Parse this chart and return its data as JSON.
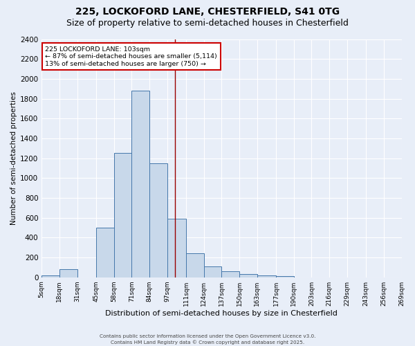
{
  "title_line1": "225, LOCKOFORD LANE, CHESTERFIELD, S41 0TG",
  "title_line2": "Size of property relative to semi-detached houses in Chesterfield",
  "xlabel": "Distribution of semi-detached houses by size in Chesterfield",
  "ylabel": "Number of semi-detached properties",
  "bin_edges": [
    5,
    18,
    31,
    45,
    58,
    71,
    84,
    97,
    111,
    124,
    137,
    150,
    163,
    177,
    190,
    203,
    216,
    229,
    243,
    256,
    269
  ],
  "bin_labels": [
    "5sqm",
    "18sqm",
    "31sqm",
    "45sqm",
    "58sqm",
    "71sqm",
    "84sqm",
    "97sqm",
    "111sqm",
    "124sqm",
    "137sqm",
    "150sqm",
    "163sqm",
    "177sqm",
    "190sqm",
    "203sqm",
    "216sqm",
    "229sqm",
    "243sqm",
    "256sqm",
    "269sqm"
  ],
  "bar_heights": [
    20,
    80,
    0,
    500,
    1250,
    1880,
    1150,
    590,
    245,
    110,
    60,
    35,
    20,
    15,
    0,
    0,
    0,
    0,
    0,
    0
  ],
  "bar_facecolor": "#c8d8ea",
  "bar_edgecolor": "#4477aa",
  "property_line_x": 103,
  "property_line_color": "#990000",
  "annotation_line1": "225 LOCKOFORD LANE: 103sqm",
  "annotation_line2": "← 87% of semi-detached houses are smaller (5,114)",
  "annotation_line3": "13% of semi-detached houses are larger (750) →",
  "annotation_box_edgecolor": "#cc0000",
  "annotation_box_facecolor": "#ffffff",
  "ylim": [
    0,
    2400
  ],
  "yticks": [
    0,
    200,
    400,
    600,
    800,
    1000,
    1200,
    1400,
    1600,
    1800,
    2000,
    2200,
    2400
  ],
  "background_color": "#e8eef8",
  "grid_color": "#ffffff",
  "footnote_line1": "Contains HM Land Registry data © Crown copyright and database right 2025.",
  "footnote_line2": "Contains public sector information licensed under the Open Government Licence v3.0.",
  "title_fontsize": 10,
  "subtitle_fontsize": 9
}
